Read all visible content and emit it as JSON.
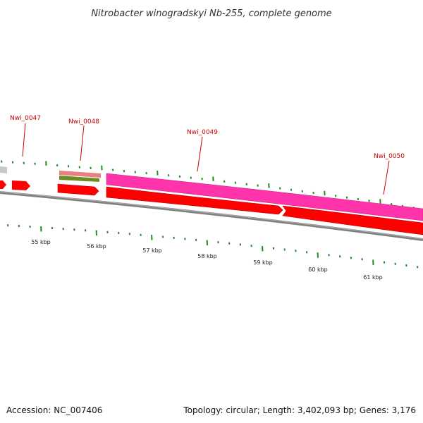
{
  "title": "Nitrobacter winogradskyi Nb-255, complete genome",
  "accession": "Accession: NC_007406",
  "summary": "Topology: circular; Length: 3,402,093 bp; Genes: 3,176",
  "scale_labels": [
    "55 kbp",
    "56 kbp",
    "57 kbp",
    "58 kbp",
    "59 kbp",
    "60 kbp",
    "61 kbp"
  ],
  "genes": [
    {
      "name": "Nwi_0047"
    },
    {
      "name": "Nwi_0048"
    },
    {
      "name": "Nwi_0049"
    },
    {
      "name": "Nwi_0050"
    }
  ],
  "colors": {
    "cds_forward": "#ff0000",
    "cds_pink": "#ff33aa",
    "rrna_salmon": "#e88080",
    "trna_olive": "#6b8e23",
    "backbone": "#808080",
    "ticks": "#228b22",
    "labels": "#cc0000",
    "grey_feature": "#c8c8c8"
  }
}
